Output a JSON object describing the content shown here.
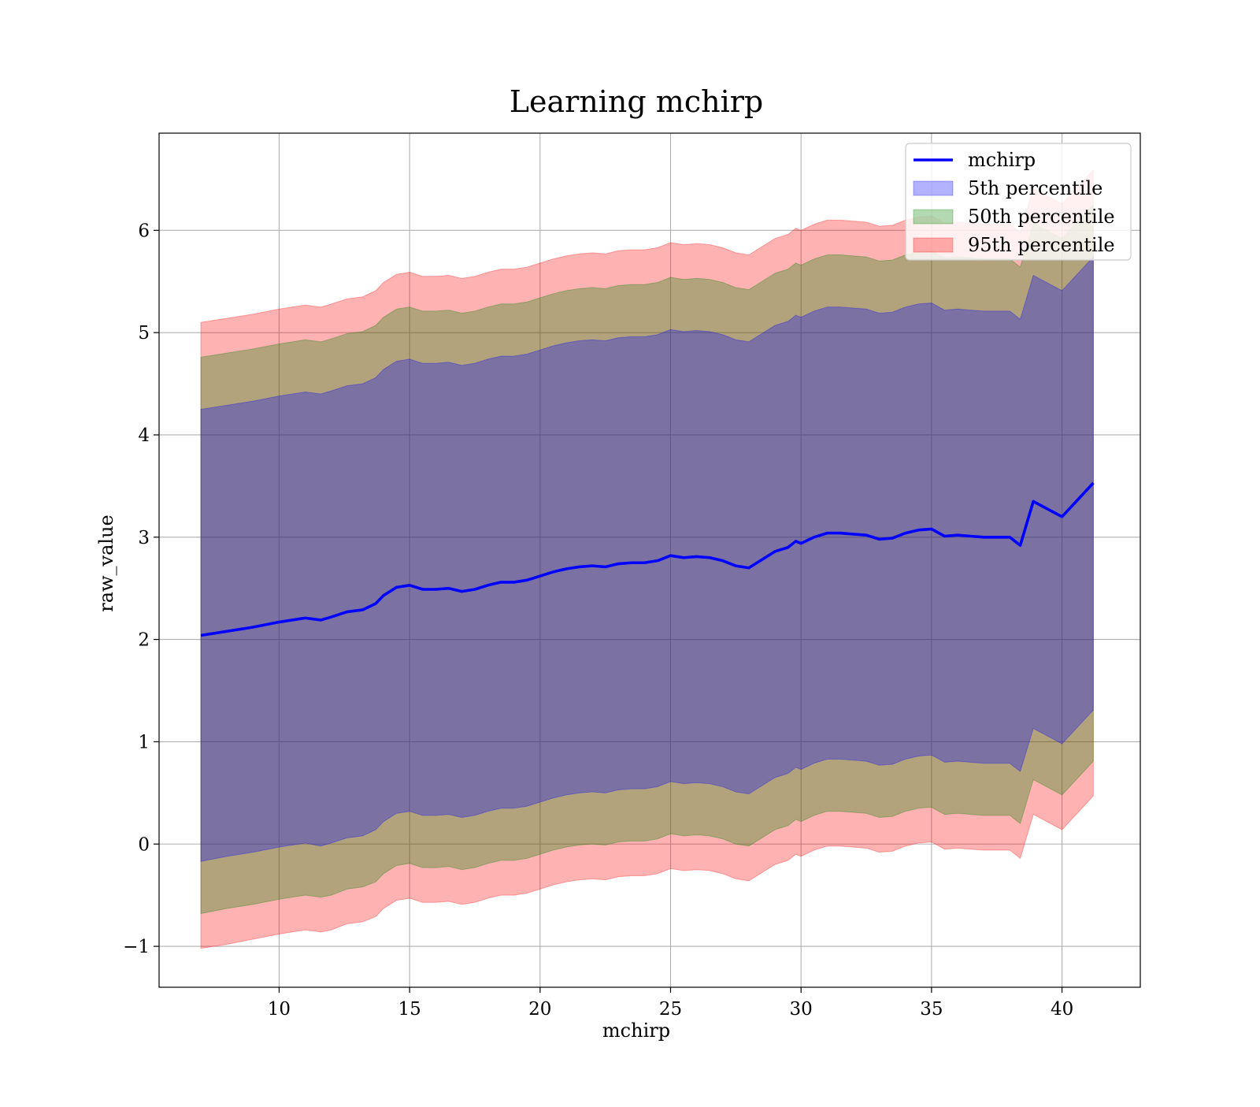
{
  "chart_data": {
    "type": "area",
    "title": "Learning mchirp",
    "xlabel": "mchirp",
    "ylabel": "raw_value",
    "xlim": [
      5.4,
      43.0
    ],
    "ylim": [
      -1.4,
      6.95
    ],
    "xticks": [
      10,
      15,
      20,
      25,
      30,
      35,
      40
    ],
    "yticks": [
      -1,
      0,
      1,
      2,
      3,
      4,
      5,
      6
    ],
    "xtick_labels": [
      "10",
      "15",
      "20",
      "25",
      "30",
      "35",
      "40"
    ],
    "ytick_labels": [
      "−1",
      "0",
      "1",
      "2",
      "3",
      "4",
      "5",
      "6"
    ],
    "grid": true,
    "legend_position": "top-right",
    "x": [
      7.0,
      8.0,
      9.0,
      10.0,
      11.0,
      11.6,
      12.0,
      12.6,
      13.2,
      13.7,
      14.0,
      14.5,
      15.0,
      15.5,
      16.0,
      16.5,
      17.0,
      17.5,
      18.0,
      18.5,
      19.0,
      19.5,
      20.0,
      20.5,
      21.0,
      21.5,
      22.0,
      22.5,
      23.0,
      23.5,
      24.0,
      24.5,
      25.0,
      25.5,
      26.0,
      26.5,
      27.0,
      27.5,
      28.0,
      28.5,
      29.0,
      29.5,
      29.8,
      30.0,
      30.5,
      31.0,
      31.5,
      32.0,
      32.5,
      33.0,
      33.5,
      34.0,
      34.5,
      35.0,
      35.5,
      36.0,
      36.5,
      37.0,
      37.5,
      38.0,
      38.4,
      38.9,
      40.0,
      41.2
    ],
    "series": [
      {
        "name": "mchirp",
        "type": "line",
        "color": "#0000ff",
        "values": [
          2.04,
          2.08,
          2.12,
          2.17,
          2.21,
          2.19,
          2.22,
          2.27,
          2.29,
          2.35,
          2.43,
          2.51,
          2.53,
          2.49,
          2.49,
          2.5,
          2.47,
          2.49,
          2.53,
          2.56,
          2.56,
          2.58,
          2.62,
          2.66,
          2.69,
          2.71,
          2.72,
          2.71,
          2.74,
          2.75,
          2.75,
          2.77,
          2.82,
          2.8,
          2.81,
          2.8,
          2.77,
          2.72,
          2.7,
          2.78,
          2.86,
          2.9,
          2.96,
          2.94,
          3.0,
          3.04,
          3.04,
          3.03,
          3.02,
          2.98,
          2.99,
          3.04,
          3.07,
          3.08,
          3.01,
          3.02,
          3.01,
          3.0,
          3.0,
          3.0,
          2.92,
          3.35,
          3.2,
          3.53
        ]
      },
      {
        "name": "5th percentile",
        "type": "band",
        "color": "#0000ff",
        "lower": [
          -0.17,
          -0.12,
          -0.08,
          -0.03,
          0.01,
          -0.02,
          0.01,
          0.06,
          0.08,
          0.14,
          0.22,
          0.3,
          0.32,
          0.28,
          0.28,
          0.29,
          0.26,
          0.28,
          0.32,
          0.35,
          0.35,
          0.37,
          0.41,
          0.45,
          0.48,
          0.5,
          0.51,
          0.5,
          0.53,
          0.54,
          0.54,
          0.56,
          0.61,
          0.59,
          0.6,
          0.59,
          0.56,
          0.51,
          0.49,
          0.57,
          0.65,
          0.69,
          0.75,
          0.73,
          0.79,
          0.83,
          0.83,
          0.82,
          0.81,
          0.77,
          0.78,
          0.83,
          0.86,
          0.87,
          0.8,
          0.81,
          0.8,
          0.79,
          0.79,
          0.79,
          0.71,
          1.13,
          0.98,
          1.31
        ],
        "upper": [
          4.25,
          4.29,
          4.33,
          4.38,
          4.42,
          4.4,
          4.43,
          4.48,
          4.5,
          4.56,
          4.64,
          4.72,
          4.74,
          4.7,
          4.7,
          4.71,
          4.68,
          4.7,
          4.74,
          4.77,
          4.77,
          4.79,
          4.83,
          4.87,
          4.9,
          4.92,
          4.93,
          4.92,
          4.95,
          4.96,
          4.96,
          4.98,
          5.03,
          5.01,
          5.02,
          5.01,
          4.98,
          4.93,
          4.91,
          4.99,
          5.07,
          5.11,
          5.17,
          5.15,
          5.21,
          5.25,
          5.25,
          5.24,
          5.23,
          5.19,
          5.2,
          5.25,
          5.28,
          5.29,
          5.22,
          5.23,
          5.22,
          5.21,
          5.21,
          5.21,
          5.13,
          5.56,
          5.41,
          5.74
        ]
      },
      {
        "name": "50th percentile",
        "type": "band",
        "color": "#008000",
        "lower": [
          -0.68,
          -0.63,
          -0.59,
          -0.54,
          -0.5,
          -0.52,
          -0.5,
          -0.44,
          -0.42,
          -0.37,
          -0.29,
          -0.21,
          -0.19,
          -0.23,
          -0.23,
          -0.22,
          -0.25,
          -0.23,
          -0.19,
          -0.16,
          -0.16,
          -0.14,
          -0.1,
          -0.06,
          -0.03,
          -0.01,
          0.0,
          -0.01,
          0.02,
          0.03,
          0.03,
          0.05,
          0.1,
          0.08,
          0.09,
          0.08,
          0.05,
          0.0,
          -0.02,
          0.06,
          0.14,
          0.18,
          0.24,
          0.22,
          0.28,
          0.32,
          0.32,
          0.31,
          0.3,
          0.26,
          0.27,
          0.32,
          0.35,
          0.36,
          0.29,
          0.3,
          0.29,
          0.28,
          0.28,
          0.28,
          0.2,
          0.63,
          0.48,
          0.81
        ],
        "upper": [
          4.76,
          4.8,
          4.84,
          4.89,
          4.93,
          4.91,
          4.94,
          4.99,
          5.01,
          5.07,
          5.15,
          5.23,
          5.25,
          5.21,
          5.21,
          5.22,
          5.19,
          5.21,
          5.25,
          5.28,
          5.28,
          5.3,
          5.34,
          5.38,
          5.41,
          5.43,
          5.44,
          5.43,
          5.46,
          5.47,
          5.47,
          5.49,
          5.54,
          5.52,
          5.53,
          5.52,
          5.49,
          5.44,
          5.42,
          5.5,
          5.58,
          5.62,
          5.68,
          5.66,
          5.72,
          5.76,
          5.76,
          5.75,
          5.74,
          5.7,
          5.71,
          5.76,
          5.79,
          5.8,
          5.73,
          5.74,
          5.73,
          5.72,
          5.72,
          5.72,
          5.64,
          6.07,
          5.92,
          6.25
        ]
      },
      {
        "name": "95th percentile",
        "type": "band",
        "color": "#ff0000",
        "lower": [
          -1.02,
          -0.98,
          -0.93,
          -0.88,
          -0.84,
          -0.86,
          -0.84,
          -0.78,
          -0.76,
          -0.71,
          -0.63,
          -0.55,
          -0.53,
          -0.57,
          -0.57,
          -0.56,
          -0.59,
          -0.57,
          -0.53,
          -0.5,
          -0.5,
          -0.48,
          -0.44,
          -0.4,
          -0.37,
          -0.35,
          -0.34,
          -0.35,
          -0.32,
          -0.31,
          -0.31,
          -0.29,
          -0.24,
          -0.26,
          -0.25,
          -0.26,
          -0.29,
          -0.34,
          -0.36,
          -0.28,
          -0.2,
          -0.16,
          -0.1,
          -0.12,
          -0.06,
          -0.02,
          -0.02,
          -0.03,
          -0.04,
          -0.08,
          -0.07,
          -0.02,
          0.01,
          0.02,
          -0.05,
          -0.04,
          -0.05,
          -0.06,
          -0.06,
          -0.06,
          -0.14,
          0.29,
          0.14,
          0.47
        ],
        "upper": [
          5.1,
          5.14,
          5.18,
          5.23,
          5.27,
          5.25,
          5.28,
          5.33,
          5.35,
          5.41,
          5.49,
          5.57,
          5.59,
          5.55,
          5.55,
          5.56,
          5.53,
          5.55,
          5.59,
          5.62,
          5.62,
          5.64,
          5.68,
          5.72,
          5.75,
          5.77,
          5.78,
          5.77,
          5.8,
          5.81,
          5.81,
          5.83,
          5.88,
          5.86,
          5.87,
          5.86,
          5.83,
          5.78,
          5.76,
          5.84,
          5.92,
          5.96,
          6.02,
          6.0,
          6.06,
          6.1,
          6.1,
          6.09,
          6.08,
          6.04,
          6.05,
          6.1,
          6.13,
          6.14,
          6.07,
          6.08,
          6.07,
          6.06,
          6.06,
          6.06,
          5.98,
          6.41,
          6.26,
          6.59
        ]
      }
    ]
  }
}
